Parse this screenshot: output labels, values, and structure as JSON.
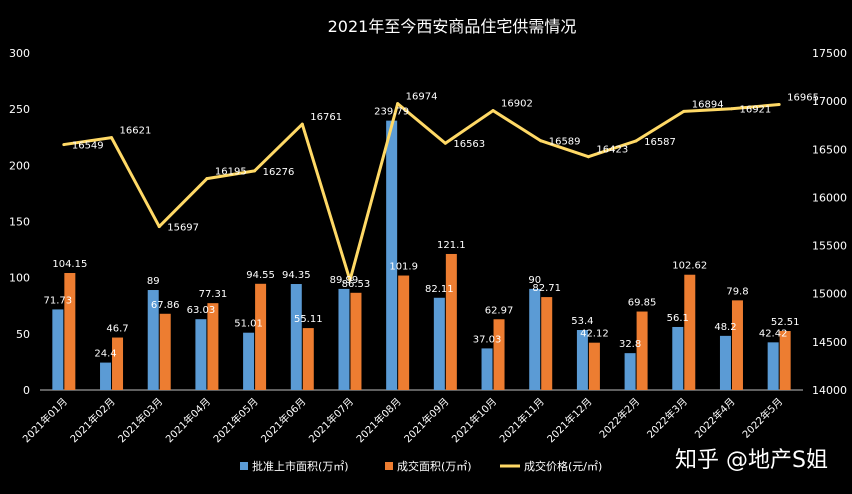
{
  "watermark": "知乎 @地产S姐",
  "colors": {
    "supply": "#5B9BD5",
    "sold": "#ED7D31",
    "price": "#FFD966",
    "background": "#000000",
    "text": "#FFFFFF"
  },
  "chart_data": {
    "type": "bar",
    "title": "2021年至今西安商品住宅供需情况",
    "categories": [
      "2021年01月",
      "2021年02月",
      "2021年03月",
      "2021年04月",
      "2021年05月",
      "2021年06月",
      "2021年07月",
      "2021年08月",
      "2021年09月",
      "2021年10月",
      "2021年11月",
      "2021年12月",
      "2022年2月",
      "2022年3月",
      "2022年4月",
      "2022年5月"
    ],
    "series": [
      {
        "name": "批准上市面积(万㎡)",
        "type": "bar",
        "axis": "left",
        "values": [
          71.73,
          24.4,
          89,
          63.03,
          51.01,
          94.35,
          89.99,
          239.79,
          82.11,
          37.03,
          90,
          53.4,
          32.8,
          56.1,
          48.2,
          42.42
        ]
      },
      {
        "name": "成交面积(万㎡)",
        "type": "bar",
        "axis": "left",
        "values": [
          104.15,
          46.7,
          67.86,
          77.31,
          94.55,
          55.11,
          86.53,
          101.9,
          121.1,
          62.97,
          82.71,
          42.12,
          69.85,
          102.62,
          79.8,
          52.51
        ]
      },
      {
        "name": "成交价格(元/㎡)",
        "type": "line",
        "axis": "right",
        "values": [
          16549,
          16621,
          15697,
          16195,
          16276,
          16761,
          15140,
          16974,
          16563,
          16902,
          16589,
          16423,
          16587,
          16894,
          16921,
          16965
        ]
      }
    ],
    "value_labels": {
      "price": [
        "16549",
        "16621",
        "15697",
        "16195",
        "16276",
        "16761",
        "",
        "16974",
        "16563",
        "16902",
        "16589",
        "16423",
        "16587",
        "16894",
        "16921",
        "16965"
      ]
    },
    "y_left": {
      "min": 0,
      "max": 300,
      "ticks": [
        0,
        50,
        100,
        150,
        200,
        250,
        300
      ]
    },
    "y_right": {
      "min": 14000,
      "max": 17500,
      "ticks": [
        14000,
        14500,
        15000,
        15500,
        16000,
        16500,
        17000,
        17500
      ]
    },
    "grid": false,
    "legend_position": "bottom"
  }
}
